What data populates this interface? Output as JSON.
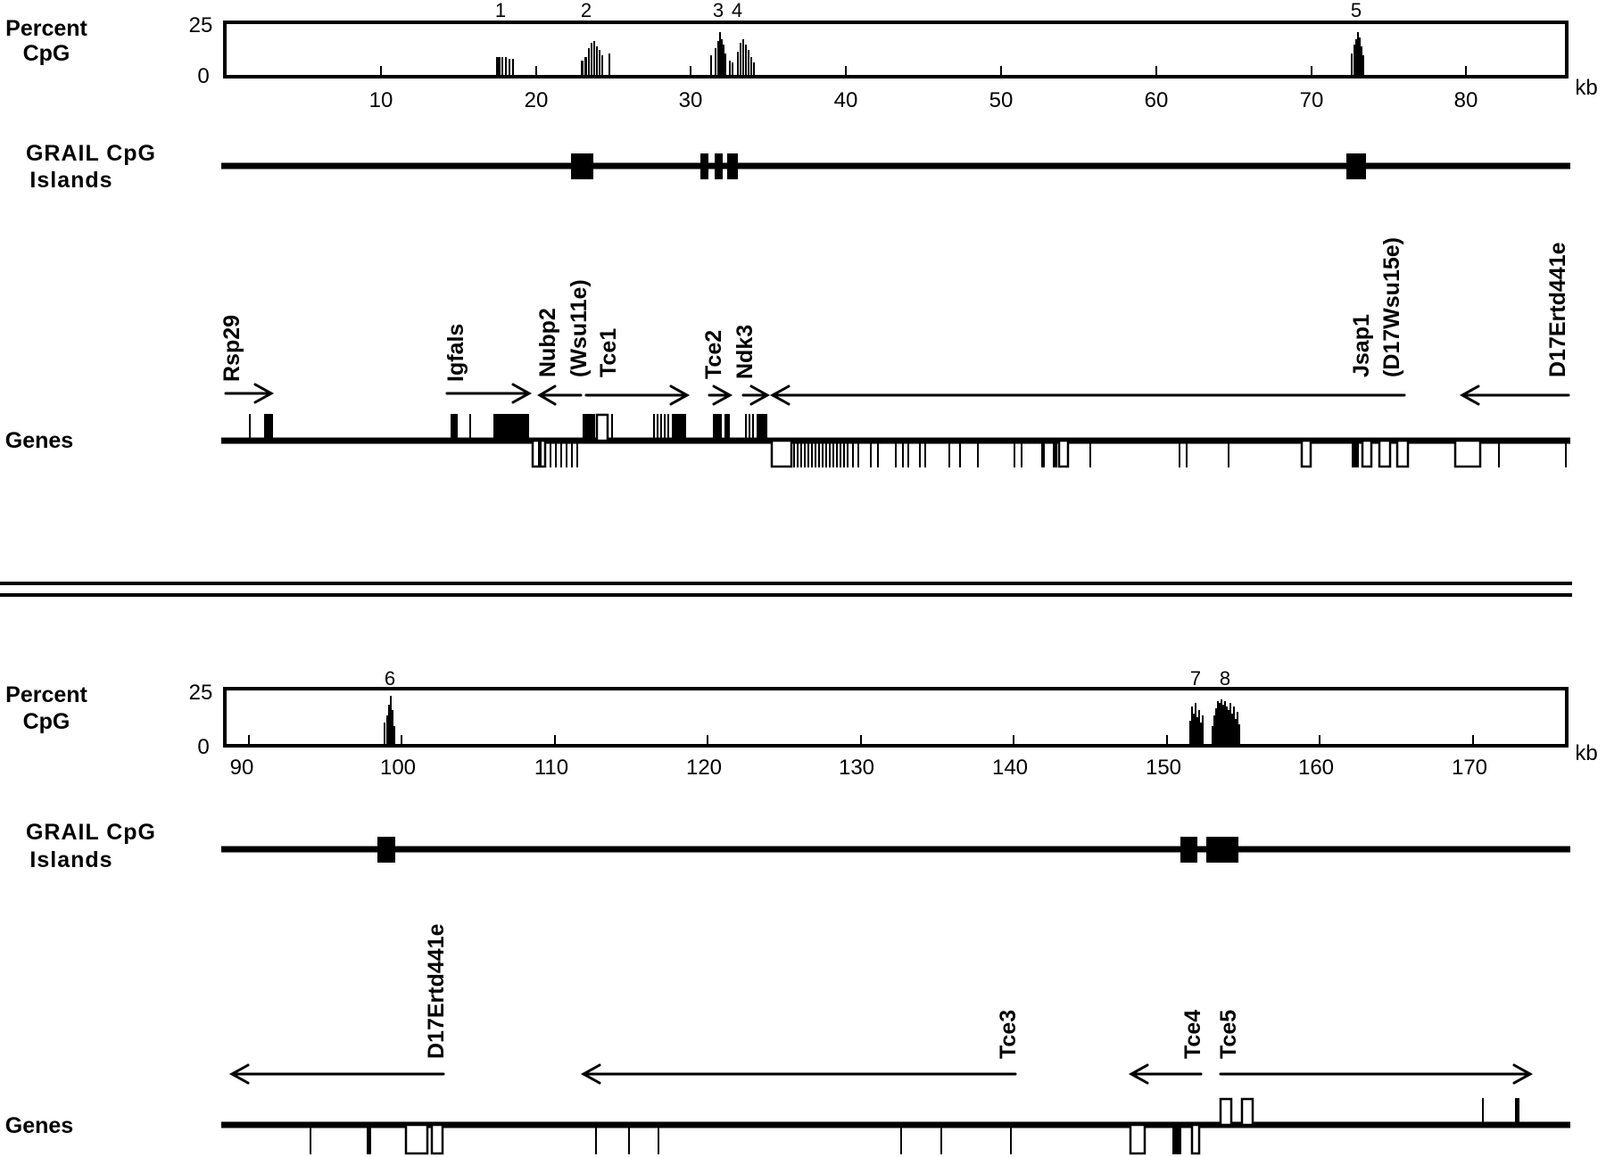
{
  "unit_label": "kb",
  "panels": [
    {
      "cpg_label_line1": "Percent",
      "cpg_label_line2": "CpG",
      "y_tick_top": "25",
      "y_tick_bottom": "0",
      "grail_label_line1": "GRAIL CpG",
      "grail_label_line2": "Islands",
      "genes_label": "Genes",
      "x_ticks": [
        "10",
        "20",
        "30",
        "40",
        "50",
        "60",
        "70",
        "80"
      ],
      "peak_numbers": [
        "1",
        "2",
        "3",
        "4",
        "5"
      ],
      "gene_names": [
        "Rsp29",
        "Igfals",
        "Nubp2",
        "(Wsu11e)",
        "Tce1",
        "Tce2",
        "Ndk3",
        "Jsap1",
        "(D17Wsu15e)",
        "D17Ertd441e"
      ]
    },
    {
      "cpg_label_line1": "Percent",
      "cpg_label_line2": "CpG",
      "y_tick_top": "25",
      "y_tick_bottom": "0",
      "grail_label_line1": "GRAIL CpG",
      "grail_label_line2": "Islands",
      "genes_label": "Genes",
      "x_ticks": [
        "90",
        "100",
        "110",
        "120",
        "130",
        "140",
        "150",
        "160",
        "170"
      ],
      "peak_numbers": [
        "6",
        "7",
        "8"
      ],
      "gene_names": [
        "D17Ertd441e",
        "Tce3",
        "Tce4",
        "Tce5"
      ]
    }
  ]
}
